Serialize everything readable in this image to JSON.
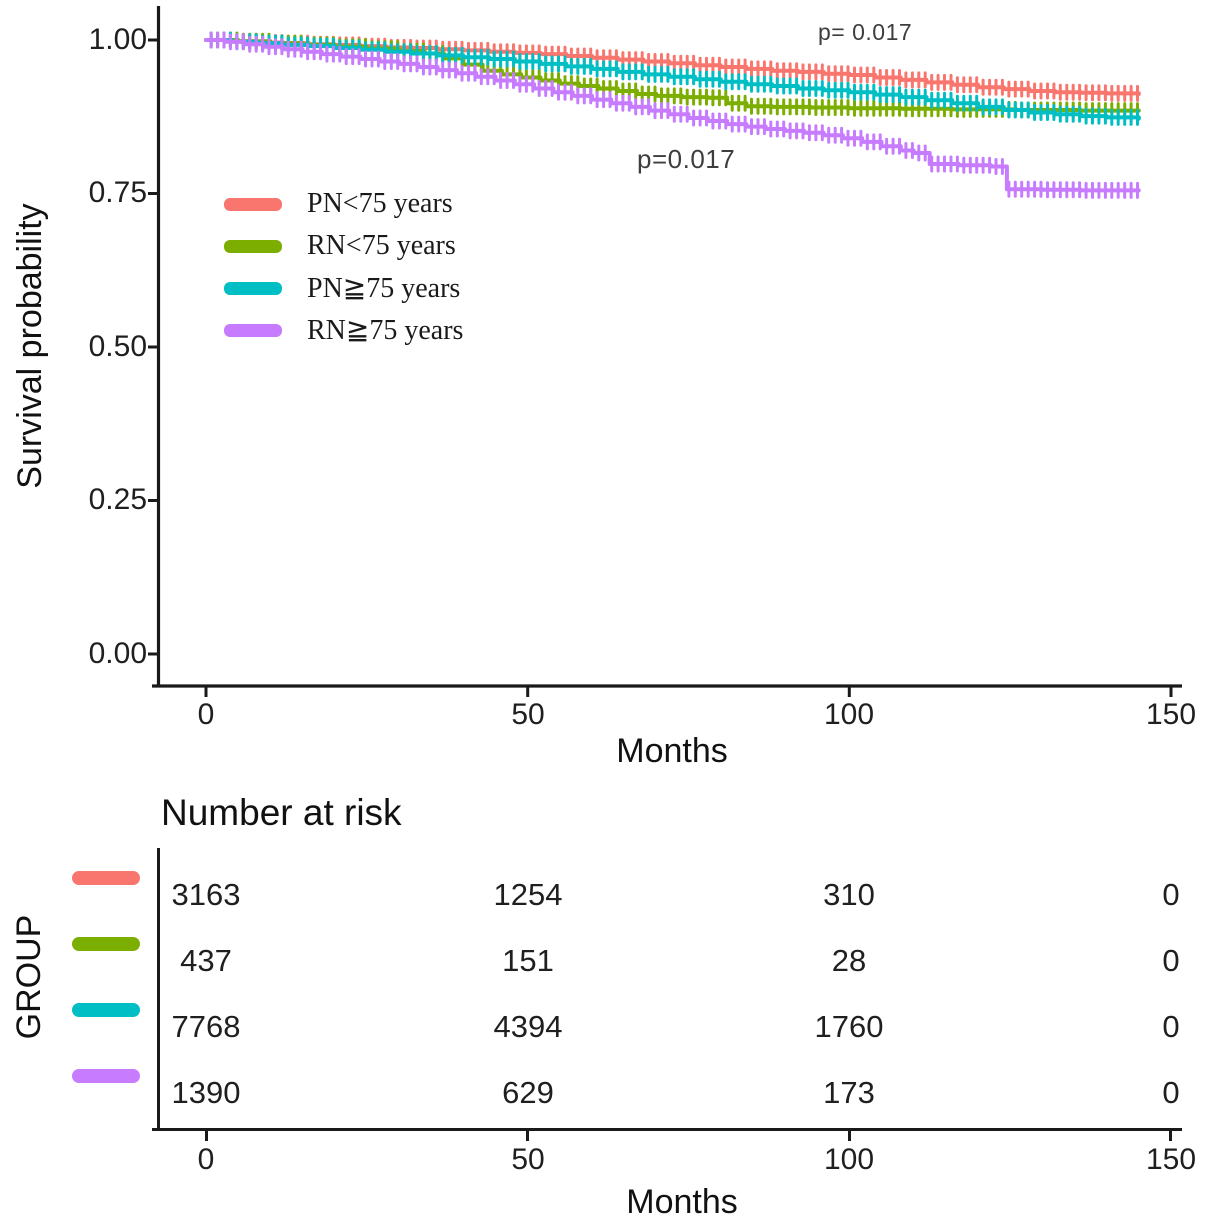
{
  "chart": {
    "p_value_top": "p= 0.017",
    "p_value_mid": "p=0.017",
    "y_axis": {
      "label": "Survival probability",
      "ticks": [
        "1.00",
        "0.75",
        "0.50",
        "0.25",
        "0.00"
      ]
    },
    "x_axis": {
      "label": "Months",
      "ticks": [
        "0",
        "50",
        "100",
        "150"
      ]
    },
    "legend": [
      {
        "label": "PN<75 years",
        "color": "#F8766D"
      },
      {
        "label": "RN<75 years",
        "color": "#7CAE00"
      },
      {
        "label": "PN≧75 years",
        "color": "#00BFC4"
      },
      {
        "label": "RN≧75 years",
        "color": "#C77CFF"
      }
    ]
  },
  "chart_data": {
    "type": "line",
    "subtype": "kaplan-meier-step-with-censor-ticks",
    "title": "",
    "xlabel": "Months",
    "ylabel": "Survival probability",
    "xlim": [
      0,
      150
    ],
    "ylim": [
      0,
      1.05
    ],
    "x_ticks": [
      0,
      50,
      100,
      150
    ],
    "y_ticks": [
      0.0,
      0.25,
      0.5,
      0.75,
      1.0
    ],
    "grid": false,
    "legend_position": "inside-left",
    "annotations": [
      {
        "text": "p= 0.017",
        "x_month": 95,
        "y_prob": 0.99
      },
      {
        "text": "p=0.017",
        "x_month": 67,
        "y_prob": 0.81
      }
    ],
    "series": [
      {
        "name": "PN<75 years",
        "color": "#F8766D",
        "points": [
          [
            0,
            1.0
          ],
          [
            4,
            0.998
          ],
          [
            8,
            0.996
          ],
          [
            12,
            0.995
          ],
          [
            16,
            0.993
          ],
          [
            20,
            0.992
          ],
          [
            24,
            0.99
          ],
          [
            28,
            0.988
          ],
          [
            32,
            0.987
          ],
          [
            36,
            0.985
          ],
          [
            40,
            0.983
          ],
          [
            44,
            0.981
          ],
          [
            48,
            0.979
          ],
          [
            52,
            0.977
          ],
          [
            56,
            0.974
          ],
          [
            60,
            0.971
          ],
          [
            64,
            0.968
          ],
          [
            68,
            0.965
          ],
          [
            72,
            0.962
          ],
          [
            76,
            0.959
          ],
          [
            80,
            0.956
          ],
          [
            84,
            0.953
          ],
          [
            88,
            0.95
          ],
          [
            92,
            0.948
          ],
          [
            96,
            0.945
          ],
          [
            100,
            0.943
          ],
          [
            104,
            0.939
          ],
          [
            108,
            0.935
          ],
          [
            112,
            0.931
          ],
          [
            116,
            0.927
          ],
          [
            120,
            0.923
          ],
          [
            124,
            0.92
          ],
          [
            128,
            0.917
          ],
          [
            132,
            0.915
          ],
          [
            136,
            0.914
          ],
          [
            140,
            0.913
          ],
          [
            145,
            0.912
          ]
        ]
      },
      {
        "name": "RN<75 years",
        "color": "#7CAE00",
        "points": [
          [
            0,
            1.0
          ],
          [
            5,
            0.998
          ],
          [
            10,
            0.995
          ],
          [
            15,
            0.992
          ],
          [
            20,
            0.989
          ],
          [
            25,
            0.986
          ],
          [
            30,
            0.982
          ],
          [
            34,
            0.978
          ],
          [
            37,
            0.97
          ],
          [
            40,
            0.96
          ],
          [
            43,
            0.95
          ],
          [
            46,
            0.944
          ],
          [
            49,
            0.939
          ],
          [
            52,
            0.934
          ],
          [
            55,
            0.929
          ],
          [
            58,
            0.925
          ],
          [
            61,
            0.921
          ],
          [
            64,
            0.917
          ],
          [
            67,
            0.912
          ],
          [
            70,
            0.909
          ],
          [
            74,
            0.907
          ],
          [
            78,
            0.906
          ],
          [
            81,
            0.897
          ],
          [
            84,
            0.892
          ],
          [
            88,
            0.891
          ],
          [
            94,
            0.89
          ],
          [
            100,
            0.889
          ],
          [
            108,
            0.888
          ],
          [
            116,
            0.887
          ],
          [
            126,
            0.886
          ],
          [
            136,
            0.885
          ],
          [
            145,
            0.885
          ]
        ]
      },
      {
        "name": "PN≧75 years",
        "color": "#00BFC4",
        "points": [
          [
            0,
            1.0
          ],
          [
            4,
            0.997
          ],
          [
            8,
            0.995
          ],
          [
            12,
            0.992
          ],
          [
            16,
            0.99
          ],
          [
            20,
            0.987
          ],
          [
            24,
            0.984
          ],
          [
            28,
            0.981
          ],
          [
            32,
            0.978
          ],
          [
            36,
            0.975
          ],
          [
            40,
            0.972
          ],
          [
            44,
            0.969
          ],
          [
            48,
            0.965
          ],
          [
            52,
            0.961
          ],
          [
            56,
            0.957
          ],
          [
            60,
            0.953
          ],
          [
            64,
            0.948
          ],
          [
            68,
            0.944
          ],
          [
            72,
            0.94
          ],
          [
            76,
            0.936
          ],
          [
            80,
            0.932
          ],
          [
            84,
            0.928
          ],
          [
            88,
            0.925
          ],
          [
            92,
            0.921
          ],
          [
            96,
            0.918
          ],
          [
            100,
            0.915
          ],
          [
            104,
            0.911
          ],
          [
            108,
            0.907
          ],
          [
            112,
            0.902
          ],
          [
            116,
            0.897
          ],
          [
            120,
            0.891
          ],
          [
            124,
            0.886
          ],
          [
            128,
            0.882
          ],
          [
            132,
            0.879
          ],
          [
            136,
            0.876
          ],
          [
            140,
            0.874
          ],
          [
            145,
            0.872
          ]
        ]
      },
      {
        "name": "RN≧75 years",
        "color": "#C77CFF",
        "points": [
          [
            0,
            1.0
          ],
          [
            3,
            0.997
          ],
          [
            6,
            0.993
          ],
          [
            9,
            0.989
          ],
          [
            12,
            0.985
          ],
          [
            15,
            0.981
          ],
          [
            18,
            0.977
          ],
          [
            21,
            0.973
          ],
          [
            24,
            0.969
          ],
          [
            27,
            0.965
          ],
          [
            30,
            0.961
          ],
          [
            33,
            0.956
          ],
          [
            36,
            0.951
          ],
          [
            39,
            0.946
          ],
          [
            42,
            0.94
          ],
          [
            45,
            0.934
          ],
          [
            48,
            0.928
          ],
          [
            51,
            0.921
          ],
          [
            54,
            0.915
          ],
          [
            57,
            0.909
          ],
          [
            60,
            0.903
          ],
          [
            63,
            0.897
          ],
          [
            66,
            0.891
          ],
          [
            69,
            0.885
          ],
          [
            72,
            0.879
          ],
          [
            75,
            0.873
          ],
          [
            78,
            0.868
          ],
          [
            81,
            0.863
          ],
          [
            84,
            0.859
          ],
          [
            87,
            0.855
          ],
          [
            90,
            0.852
          ],
          [
            93,
            0.849
          ],
          [
            96,
            0.845
          ],
          [
            99,
            0.84
          ],
          [
            102,
            0.834
          ],
          [
            105,
            0.827
          ],
          [
            108,
            0.82
          ],
          [
            110,
            0.816
          ],
          [
            112.5,
            0.798
          ],
          [
            117,
            0.796
          ],
          [
            122,
            0.794
          ],
          [
            124.5,
            0.757
          ],
          [
            130,
            0.756
          ],
          [
            136,
            0.755
          ],
          [
            145,
            0.755
          ]
        ]
      }
    ]
  },
  "risk_table": {
    "title": "Number at risk",
    "group_axis_label": "GROUP",
    "x_axis": {
      "label": "Months",
      "ticks": [
        "0",
        "50",
        "100",
        "150"
      ]
    },
    "rows": [
      {
        "group": "PN<75 years",
        "color": "#F8766D",
        "values": [
          "3163",
          "1254",
          "310",
          "0"
        ]
      },
      {
        "group": "RN<75 years",
        "color": "#7CAE00",
        "values": [
          "437",
          "151",
          "28",
          "0"
        ]
      },
      {
        "group": "PN≧75 years",
        "color": "#00BFC4",
        "values": [
          "7768",
          "4394",
          "1760",
          "0"
        ]
      },
      {
        "group": "RN≧75 years",
        "color": "#C77CFF",
        "values": [
          "1390",
          "629",
          "173",
          "0"
        ]
      }
    ]
  }
}
